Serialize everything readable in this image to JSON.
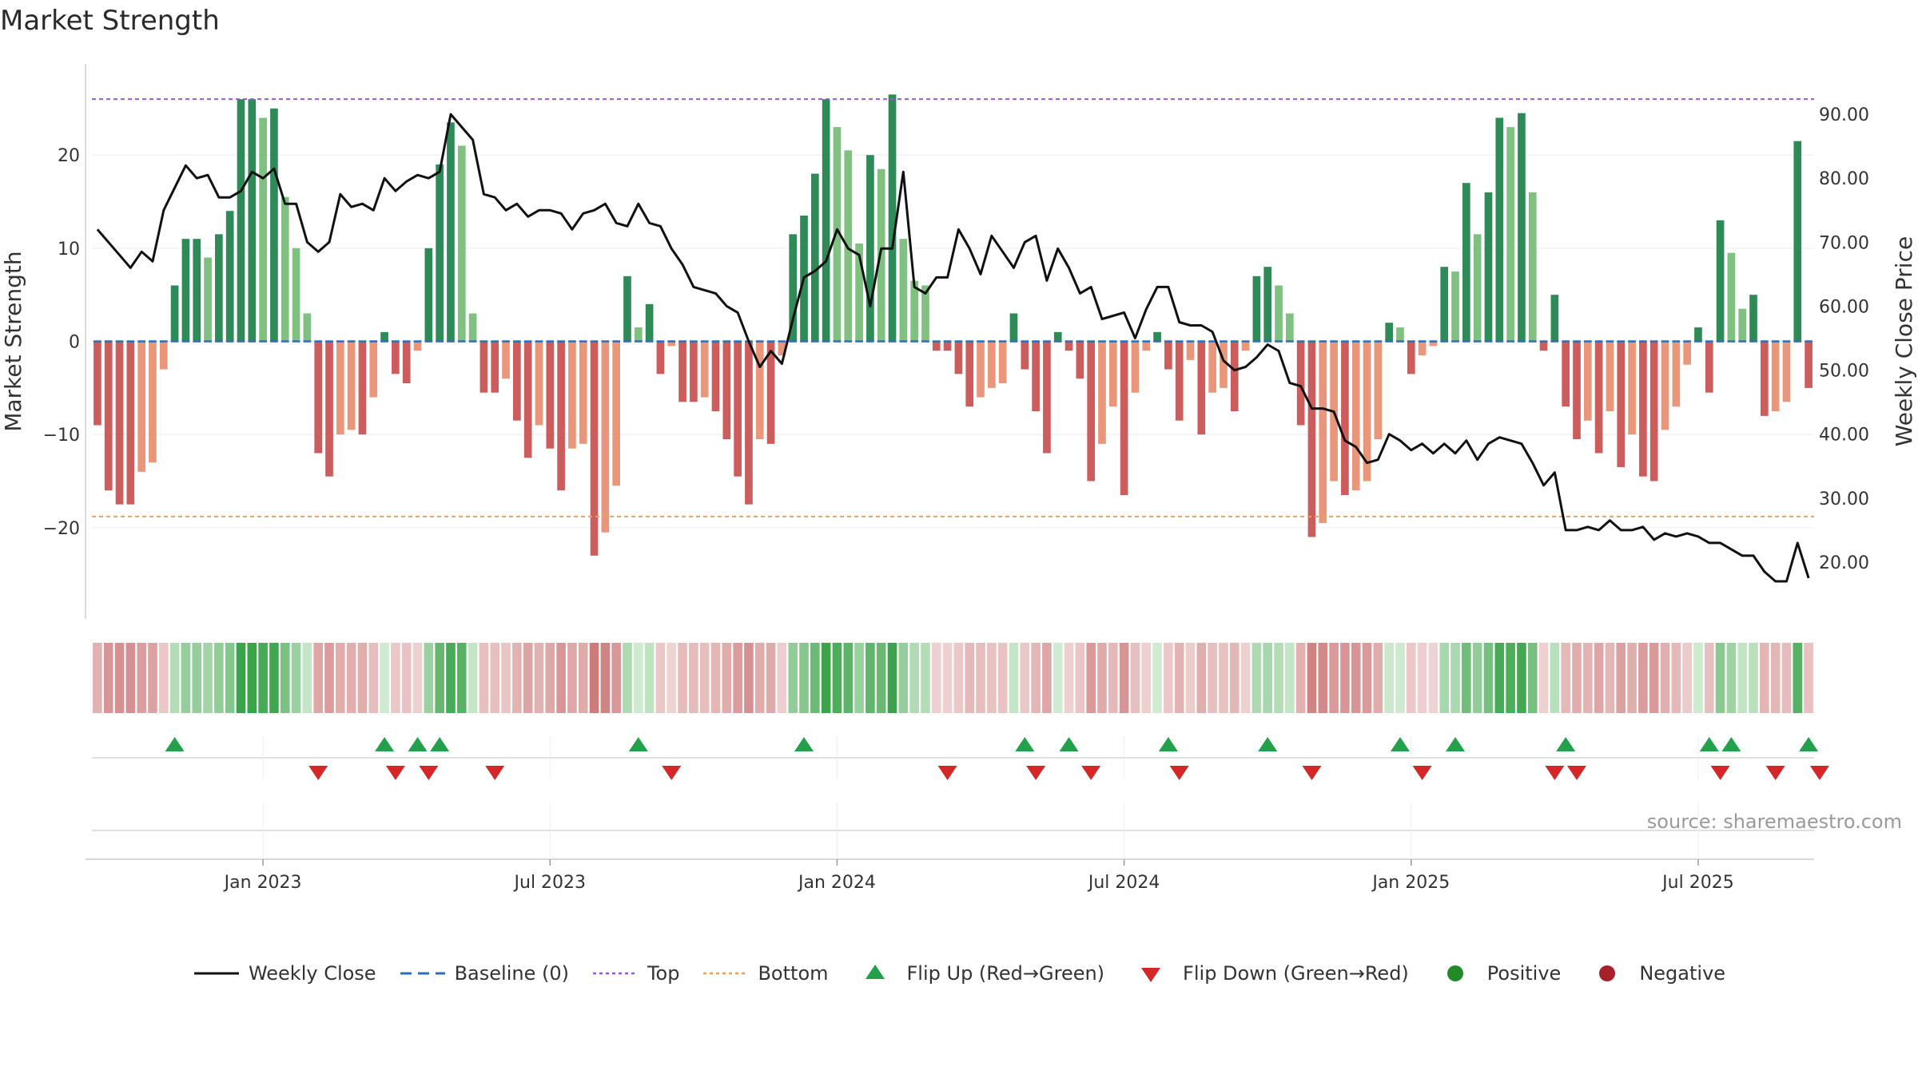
{
  "chart_data": {
    "type": "bar",
    "title": "Market Strength",
    "source": "source: sharemaestro.com",
    "ylabel_left": "Market Strength",
    "ylabel_right": "Weekly Close Price",
    "ylim_left": [
      -28.5,
      28.5
    ],
    "ylim_right": [
      13.0,
      96.0
    ],
    "yticks_left": [
      -20,
      -10,
      0,
      10,
      20
    ],
    "ytick_labels_left": [
      "−20",
      "−10",
      "0",
      "10",
      "20"
    ],
    "yticks_right": [
      20,
      30,
      40,
      50,
      60,
      70,
      80,
      90
    ],
    "ytick_labels_right": [
      "20.00",
      "30.00",
      "40.00",
      "50.00",
      "60.00",
      "70.00",
      "80.00",
      "90.00"
    ],
    "top_line": 26,
    "bottom_line": -18.8,
    "x_start_week_index": 0,
    "x_ticks": [
      {
        "week": 15,
        "label": "Jan 2023"
      },
      {
        "week": 41,
        "label": "Jul 2023"
      },
      {
        "week": 67,
        "label": "Jan 2024"
      },
      {
        "week": 93,
        "label": "Jul 2024"
      },
      {
        "week": 119,
        "label": "Jan 2025"
      },
      {
        "week": 145,
        "label": "Jul 2025"
      }
    ],
    "strength": [
      -9,
      -16,
      -17.5,
      -17.5,
      -14,
      -13,
      -3,
      6,
      11,
      11,
      9,
      11.5,
      14,
      26,
      26,
      24,
      25,
      15.5,
      10,
      3,
      -12,
      -14.5,
      -10,
      -9.5,
      -10,
      -6,
      1,
      -3.5,
      -4.5,
      -1,
      10,
      19,
      23.5,
      21,
      3,
      -5.5,
      -5.5,
      -4,
      -8.5,
      -12.5,
      -9,
      -11.5,
      -16,
      -11.5,
      -11,
      -23,
      -20.5,
      -15.5,
      7,
      1.5,
      4,
      -3.5,
      -0.5,
      -6.5,
      -6.5,
      -6,
      -7.5,
      -10.5,
      -14.5,
      -17.5,
      -10.5,
      -11,
      -1.5,
      11.5,
      13.5,
      18,
      26,
      23,
      20.5,
      10.5,
      20,
      18.5,
      26.5,
      11,
      6.5,
      6,
      -1,
      -1,
      -3.5,
      -7,
      -6,
      -5,
      -4.5,
      3,
      -3,
      -7.5,
      -12,
      1,
      -1,
      -4,
      -15,
      -11,
      -7,
      -16.5,
      -5.5,
      -1,
      1,
      -3,
      -8.5,
      -2,
      -10,
      -5.5,
      -5,
      -7.5,
      -1,
      7,
      8,
      6,
      3,
      -9,
      -21,
      -19.5,
      -15,
      -16.5,
      -16,
      -15,
      -10.5,
      2,
      1.5,
      -3.5,
      -1.5,
      -0.5,
      8,
      7.5,
      17,
      11.5,
      16,
      24,
      23,
      24.5,
      16,
      -1,
      5,
      -7,
      -10.5,
      -8.5,
      -12,
      -7.5,
      -13.5,
      -10,
      -14.5,
      -15,
      -9.5,
      -7,
      -2.5,
      1.5,
      -5.5,
      13,
      9.5,
      3.5,
      5,
      -8,
      -7.5,
      -6.5,
      21.5,
      -5
    ],
    "weekly_close": [
      72,
      70,
      68,
      66,
      68.5,
      67,
      75,
      78.5,
      82,
      80,
      80.5,
      77,
      77,
      78,
      81,
      80,
      81.5,
      76,
      76,
      70,
      68.5,
      70,
      77.5,
      75.5,
      76,
      75,
      80,
      78,
      79.5,
      80.5,
      80,
      81,
      90,
      88,
      86,
      77.5,
      77,
      75,
      76,
      74,
      75,
      75,
      74.5,
      72,
      74.5,
      75,
      76,
      73,
      72.5,
      76,
      73,
      72.5,
      69,
      66.5,
      63,
      62.5,
      62,
      60,
      59,
      54.5,
      50.5,
      53,
      51,
      58,
      64.5,
      65.5,
      67,
      72,
      69,
      68,
      60,
      69,
      69,
      81,
      63,
      62,
      64.5,
      64.5,
      72,
      69,
      65,
      71,
      68.5,
      66,
      70,
      71,
      64,
      69,
      66,
      62,
      63,
      58,
      58.5,
      59,
      55,
      59.5,
      63,
      63,
      57.5,
      57,
      57,
      56,
      51.5,
      50,
      50.5,
      52,
      54,
      53,
      48,
      47.5,
      44,
      44,
      43.5,
      39,
      38,
      35.5,
      36,
      40,
      39,
      37.5,
      38.5,
      37,
      38.5,
      37,
      39,
      36,
      38.5,
      39.5,
      39,
      38.5,
      35.5,
      32,
      34,
      25,
      25,
      25.5,
      25,
      26.5,
      25,
      25,
      25.5,
      23.5,
      24.5,
      24,
      24.5,
      24,
      23,
      23,
      22,
      21,
      21,
      18.5,
      17,
      17,
      23,
      17.5
    ],
    "flip_up_weeks": [
      7,
      26,
      29,
      31,
      49,
      64,
      84,
      88,
      97,
      106,
      118,
      123,
      133,
      146,
      148,
      155
    ],
    "flip_down_weeks": [
      20,
      27,
      30,
      36,
      52,
      77,
      85,
      90,
      98,
      110,
      120,
      132,
      134,
      147,
      152,
      156
    ]
  },
  "legend": [
    {
      "key": "weekly-close",
      "label": "Weekly Close",
      "color": "#111111"
    },
    {
      "key": "baseline",
      "label": "Baseline (0)",
      "color": "#2f6db5"
    },
    {
      "key": "top",
      "label": "Top",
      "color": "#9b59d0"
    },
    {
      "key": "bottom",
      "label": "Bottom",
      "color": "#f0a050"
    },
    {
      "key": "flip-up",
      "label": "Flip Up (Red→Green)",
      "color": "#22a04a"
    },
    {
      "key": "flip-down",
      "label": "Flip Down (Green→Red)",
      "color": "#d62728"
    },
    {
      "key": "positive",
      "label": "Positive",
      "color": "#238a2a"
    },
    {
      "key": "negative",
      "label": "Negative",
      "color": "#a8202a"
    }
  ]
}
